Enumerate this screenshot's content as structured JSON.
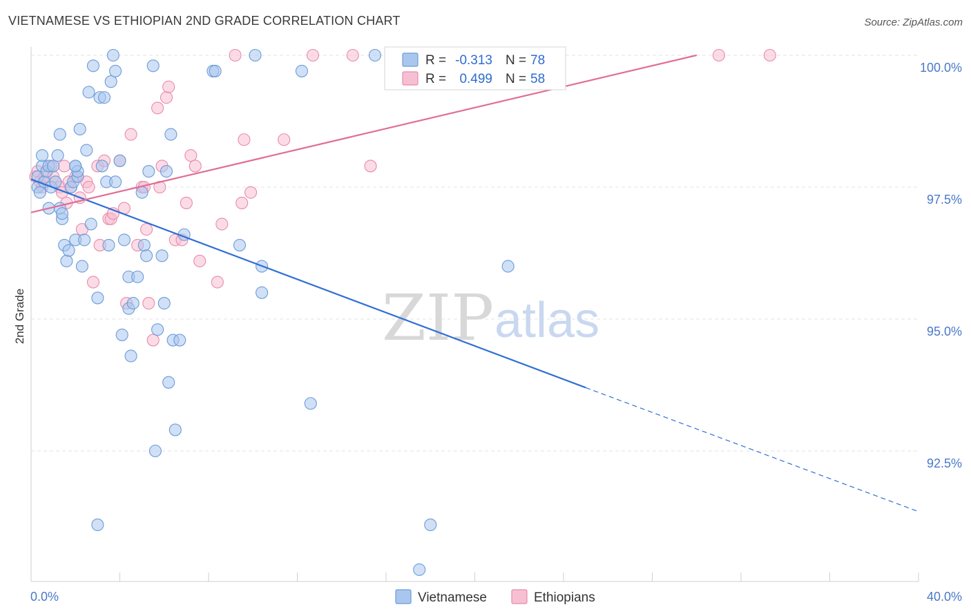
{
  "title": "VIETNAMESE VS ETHIOPIAN 2ND GRADE CORRELATION CHART",
  "source": "Source: ZipAtlas.com",
  "colors": {
    "blue_fill": "#a9c7ee",
    "blue_stroke": "#6b9bd8",
    "blue_line": "#2f6fd6",
    "pink_fill": "#f7c0d2",
    "pink_stroke": "#e88aab",
    "pink_line": "#e06e97",
    "tick_text": "#4a78c8",
    "grid": "#e3e3e3"
  },
  "legend": {
    "r_label": "R =",
    "n_label": "N =",
    "series": [
      {
        "r": "-0.313",
        "n": "78"
      },
      {
        "r": "0.499",
        "n": "58"
      }
    ]
  },
  "bottom_legend": [
    "Vietnamese",
    "Ethiopians"
  ],
  "watermark": {
    "zip": "ZIP",
    "atlas": "atlas"
  },
  "chart_data": {
    "type": "scatter",
    "title": "VIETNAMESE VS ETHIOPIAN 2ND GRADE CORRELATION CHART",
    "xlabel": "",
    "ylabel": "2nd Grade",
    "xlim": [
      0,
      40
    ],
    "ylim": [
      90.1,
      100.25
    ],
    "x_tick_labels": [
      "0.0%",
      "40.0%"
    ],
    "y_ticks": [
      100.0,
      97.5,
      95.0,
      92.5
    ],
    "y_tick_labels": [
      "100.0%",
      "97.5%",
      "95.0%",
      "92.5%"
    ],
    "grid": true,
    "legend_position": "top-center",
    "series": [
      {
        "name": "Vietnamese",
        "r": -0.313,
        "n": 78,
        "trend": {
          "x": [
            0,
            25
          ],
          "y": [
            97.65,
            93.7
          ],
          "dashed_to": [
            40,
            91.35
          ]
        },
        "points": [
          [
            0.3,
            97.7
          ],
          [
            0.3,
            97.5
          ],
          [
            0.4,
            97.4
          ],
          [
            0.5,
            97.9
          ],
          [
            0.5,
            98.1
          ],
          [
            0.6,
            97.6
          ],
          [
            0.7,
            97.8
          ],
          [
            0.8,
            97.9
          ],
          [
            0.8,
            97.1
          ],
          [
            0.9,
            97.5
          ],
          [
            1.0,
            97.9
          ],
          [
            1.1,
            97.6
          ],
          [
            1.2,
            98.1
          ],
          [
            1.3,
            98.5
          ],
          [
            1.3,
            97.1
          ],
          [
            1.4,
            96.9
          ],
          [
            1.4,
            97.0
          ],
          [
            1.5,
            96.4
          ],
          [
            1.6,
            96.1
          ],
          [
            1.7,
            96.3
          ],
          [
            1.8,
            97.5
          ],
          [
            1.9,
            97.6
          ],
          [
            2.0,
            96.5
          ],
          [
            2.0,
            97.9
          ],
          [
            2.1,
            97.7
          ],
          [
            2.1,
            97.8
          ],
          [
            2.2,
            98.6
          ],
          [
            2.3,
            96.0
          ],
          [
            2.4,
            96.5
          ],
          [
            2.5,
            98.2
          ],
          [
            2.6,
            99.3
          ],
          [
            2.7,
            96.8
          ],
          [
            2.8,
            99.8
          ],
          [
            3.0,
            95.4
          ],
          [
            3.1,
            99.2
          ],
          [
            3.2,
            97.9
          ],
          [
            3.3,
            99.2
          ],
          [
            3.4,
            97.6
          ],
          [
            3.5,
            96.4
          ],
          [
            3.6,
            99.5
          ],
          [
            3.7,
            100.0
          ],
          [
            3.8,
            99.7
          ],
          [
            3.8,
            97.6
          ],
          [
            4.0,
            98.0
          ],
          [
            4.1,
            94.7
          ],
          [
            4.2,
            96.5
          ],
          [
            4.4,
            95.2
          ],
          [
            4.4,
            95.8
          ],
          [
            4.5,
            94.3
          ],
          [
            4.6,
            95.3
          ],
          [
            4.8,
            95.8
          ],
          [
            5.0,
            97.4
          ],
          [
            5.1,
            96.4
          ],
          [
            5.2,
            96.2
          ],
          [
            5.3,
            97.8
          ],
          [
            5.5,
            99.8
          ],
          [
            5.6,
            92.5
          ],
          [
            5.7,
            94.8
          ],
          [
            5.9,
            96.2
          ],
          [
            6.0,
            95.3
          ],
          [
            6.1,
            97.8
          ],
          [
            6.2,
            93.8
          ],
          [
            6.3,
            98.5
          ],
          [
            6.4,
            94.6
          ],
          [
            6.5,
            92.9
          ],
          [
            6.7,
            94.6
          ],
          [
            6.9,
            96.6
          ],
          [
            2.0,
            97.9
          ],
          [
            8.2,
            99.7
          ],
          [
            8.3,
            99.7
          ],
          [
            9.4,
            96.4
          ],
          [
            10.1,
            100.0
          ],
          [
            10.4,
            96.0
          ],
          [
            10.4,
            95.5
          ],
          [
            12.2,
            99.7
          ],
          [
            12.6,
            93.4
          ],
          [
            15.5,
            100.0
          ],
          [
            21.5,
            96.0
          ]
        ],
        "outliers": [
          [
            3.0,
            91.1
          ],
          [
            18.0,
            91.1
          ],
          [
            17.5,
            90.25
          ]
        ]
      },
      {
        "name": "Ethiopians",
        "r": 0.499,
        "n": 58,
        "trend": {
          "x": [
            0,
            30
          ],
          "y": [
            97.02,
            100.0
          ]
        },
        "points": [
          [
            0.2,
            97.7
          ],
          [
            0.3,
            97.8
          ],
          [
            0.4,
            97.6
          ],
          [
            0.5,
            97.5
          ],
          [
            0.6,
            97.7
          ],
          [
            0.7,
            97.8
          ],
          [
            0.9,
            97.9
          ],
          [
            1.0,
            97.7
          ],
          [
            1.1,
            97.6
          ],
          [
            1.3,
            97.5
          ],
          [
            1.4,
            97.4
          ],
          [
            1.5,
            97.9
          ],
          [
            1.6,
            97.2
          ],
          [
            1.7,
            97.6
          ],
          [
            1.8,
            97.5
          ],
          [
            2.0,
            97.7
          ],
          [
            2.1,
            97.7
          ],
          [
            2.2,
            97.3
          ],
          [
            2.3,
            96.7
          ],
          [
            2.5,
            97.6
          ],
          [
            2.6,
            97.5
          ],
          [
            2.8,
            95.7
          ],
          [
            3.0,
            97.9
          ],
          [
            3.1,
            96.4
          ],
          [
            3.3,
            98.0
          ],
          [
            3.5,
            96.9
          ],
          [
            3.6,
            96.9
          ],
          [
            3.7,
            97.0
          ],
          [
            4.0,
            98.0
          ],
          [
            4.2,
            97.1
          ],
          [
            4.3,
            95.3
          ],
          [
            4.5,
            98.5
          ],
          [
            4.8,
            96.4
          ],
          [
            5.0,
            97.5
          ],
          [
            5.1,
            97.5
          ],
          [
            5.2,
            96.7
          ],
          [
            5.3,
            95.3
          ],
          [
            5.5,
            94.6
          ],
          [
            5.7,
            99.0
          ],
          [
            5.8,
            97.5
          ],
          [
            5.9,
            97.9
          ],
          [
            6.1,
            99.2
          ],
          [
            6.2,
            99.4
          ],
          [
            6.5,
            96.5
          ],
          [
            6.8,
            96.5
          ],
          [
            7.0,
            97.2
          ],
          [
            7.2,
            98.1
          ],
          [
            7.4,
            97.9
          ],
          [
            7.6,
            96.1
          ],
          [
            8.4,
            95.7
          ],
          [
            8.6,
            96.8
          ],
          [
            9.2,
            100.0
          ],
          [
            9.5,
            97.2
          ],
          [
            9.6,
            98.4
          ],
          [
            9.9,
            97.4
          ],
          [
            11.4,
            98.4
          ],
          [
            12.7,
            100.0
          ],
          [
            14.5,
            100.0
          ],
          [
            15.3,
            97.9
          ],
          [
            21.1,
            100.0
          ],
          [
            31.0,
            100.0
          ],
          [
            33.3,
            100.0
          ]
        ]
      }
    ]
  }
}
